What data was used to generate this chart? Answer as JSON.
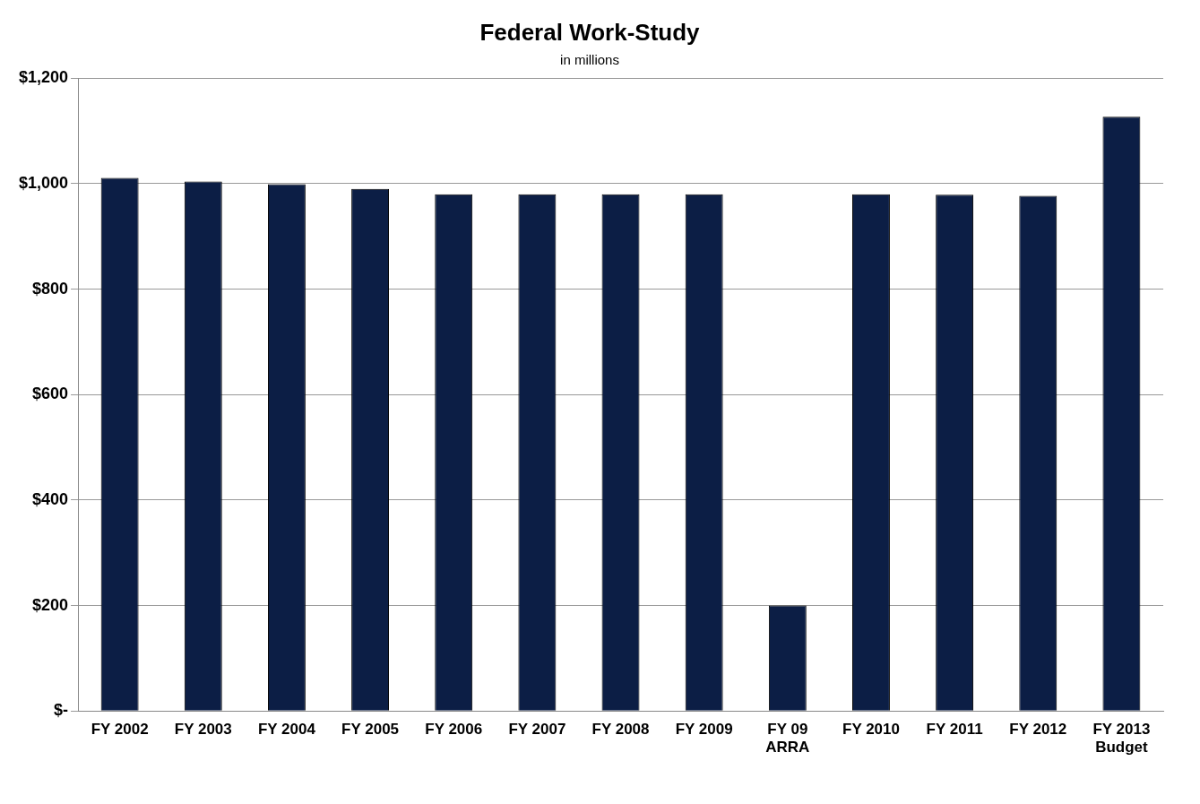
{
  "chart_data": {
    "type": "bar",
    "title": "Federal Work-Study",
    "subtitle": "in millions",
    "categories": [
      "FY 2002",
      "FY 2003",
      "FY 2004",
      "FY 2005",
      "FY 2006",
      "FY 2007",
      "FY 2008",
      "FY 2009",
      "FY 09 ARRA",
      "FY 2010",
      "FY 2011",
      "FY 2012",
      "FY 2013 Budget"
    ],
    "values": [
      1011,
      1004,
      999,
      990,
      980,
      980,
      980,
      980,
      200,
      980,
      979,
      977,
      1127
    ],
    "color": "#0c1e45",
    "ylim": [
      0,
      1200
    ],
    "yticks": [
      {
        "value": 0,
        "label": "$-"
      },
      {
        "value": 200,
        "label": "$200"
      },
      {
        "value": 400,
        "label": "$400"
      },
      {
        "value": 600,
        "label": "$600"
      },
      {
        "value": 800,
        "label": "$800"
      },
      {
        "value": 1000,
        "label": "$1,000"
      },
      {
        "value": 1200,
        "label": "$1,200"
      }
    ],
    "grid": "y"
  }
}
